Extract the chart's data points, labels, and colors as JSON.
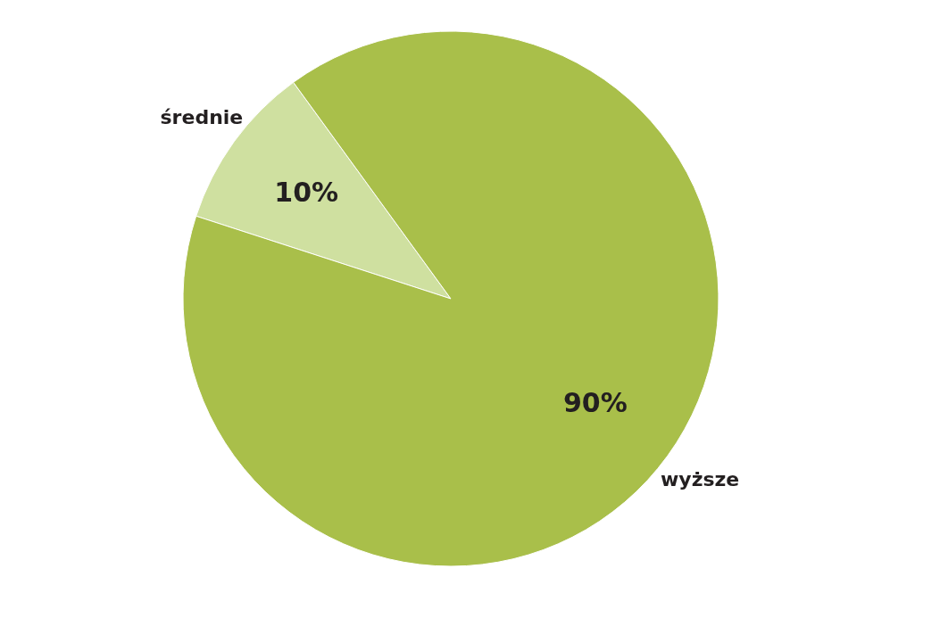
{
  "chart_data": {
    "type": "pie",
    "categories": [
      "średnie",
      "wyższe"
    ],
    "values": [
      10,
      90
    ],
    "colors": [
      "#cfe0a0",
      "#a9bf4a"
    ],
    "value_labels": [
      "10%",
      "90%"
    ],
    "legend": false
  }
}
